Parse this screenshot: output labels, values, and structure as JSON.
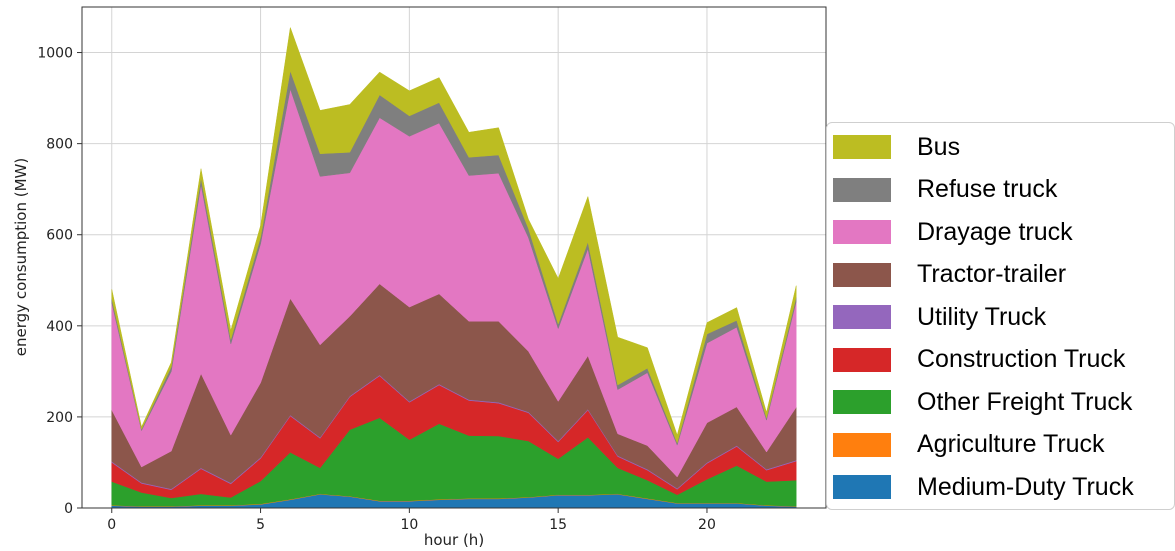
{
  "chart_data": {
    "type": "area",
    "stacked": true,
    "xlabel": "hour (h)",
    "ylabel": "energy consumption (MW)",
    "xlim": [
      -1,
      24
    ],
    "ylim": [
      0,
      1100
    ],
    "xticks": [
      0,
      5,
      10,
      15,
      20
    ],
    "yticks": [
      0,
      200,
      400,
      600,
      800,
      1000
    ],
    "grid": true,
    "legend_position": "right",
    "x": [
      0,
      1,
      2,
      3,
      4,
      5,
      6,
      7,
      8,
      9,
      10,
      11,
      12,
      13,
      14,
      15,
      16,
      17,
      18,
      19,
      20,
      21,
      22,
      23
    ],
    "series": [
      {
        "name": "Medium-Duty Truck",
        "color": "#1f77b4",
        "values": [
          5,
          3,
          3,
          5,
          5,
          8,
          18,
          30,
          25,
          15,
          15,
          18,
          20,
          20,
          23,
          28,
          28,
          30,
          20,
          10,
          10,
          10,
          5,
          3
        ]
      },
      {
        "name": "Agriculture Truck",
        "color": "#ff7f0e",
        "values": [
          1,
          1,
          1,
          1,
          1,
          1,
          1,
          1,
          1,
          1,
          1,
          1,
          1,
          1,
          1,
          1,
          1,
          1,
          1,
          1,
          1,
          1,
          1,
          1
        ]
      },
      {
        "name": "Other Freight Truck",
        "color": "#2ca02c",
        "values": [
          52,
          30,
          18,
          25,
          17,
          50,
          103,
          57,
          146,
          182,
          134,
          166,
          138,
          137,
          123,
          79,
          126,
          57,
          40,
          18,
          52,
          82,
          52,
          57
        ]
      },
      {
        "name": "Construction Truck",
        "color": "#d62728",
        "values": [
          42,
          20,
          18,
          55,
          30,
          50,
          80,
          65,
          72,
          92,
          82,
          85,
          77,
          72,
          62,
          37,
          60,
          25,
          22,
          12,
          35,
          42,
          25,
          42
        ]
      },
      {
        "name": "Utility Truck",
        "color": "#9467bd",
        "values": [
          2,
          2,
          2,
          2,
          2,
          2,
          2,
          2,
          2,
          2,
          2,
          2,
          2,
          2,
          2,
          2,
          2,
          2,
          2,
          2,
          2,
          2,
          2,
          2
        ]
      },
      {
        "name": "Tractor-trailer",
        "color": "#8c564b",
        "values": [
          113,
          34,
          83,
          207,
          105,
          164,
          256,
          203,
          175,
          200,
          207,
          198,
          172,
          178,
          133,
          87,
          117,
          48,
          52,
          25,
          87,
          85,
          38,
          116
        ]
      },
      {
        "name": "Drayage truck",
        "color": "#e377c2",
        "values": [
          235,
          80,
          175,
          415,
          200,
          305,
          460,
          370,
          315,
          365,
          375,
          375,
          320,
          325,
          250,
          160,
          235,
          97,
          160,
          70,
          175,
          175,
          70,
          232
        ]
      },
      {
        "name": "Refuse truck",
        "color": "#7f7f7f",
        "values": [
          10,
          3,
          10,
          15,
          10,
          15,
          40,
          50,
          45,
          50,
          45,
          45,
          40,
          40,
          20,
          10,
          15,
          10,
          10,
          5,
          20,
          15,
          5,
          10
        ]
      },
      {
        "name": "Bus",
        "color": "#bcbd22",
        "values": [
          20,
          5,
          10,
          20,
          20,
          25,
          95,
          95,
          105,
          50,
          55,
          55,
          55,
          60,
          20,
          100,
          100,
          105,
          45,
          17,
          25,
          28,
          12,
          25
        ]
      }
    ]
  }
}
